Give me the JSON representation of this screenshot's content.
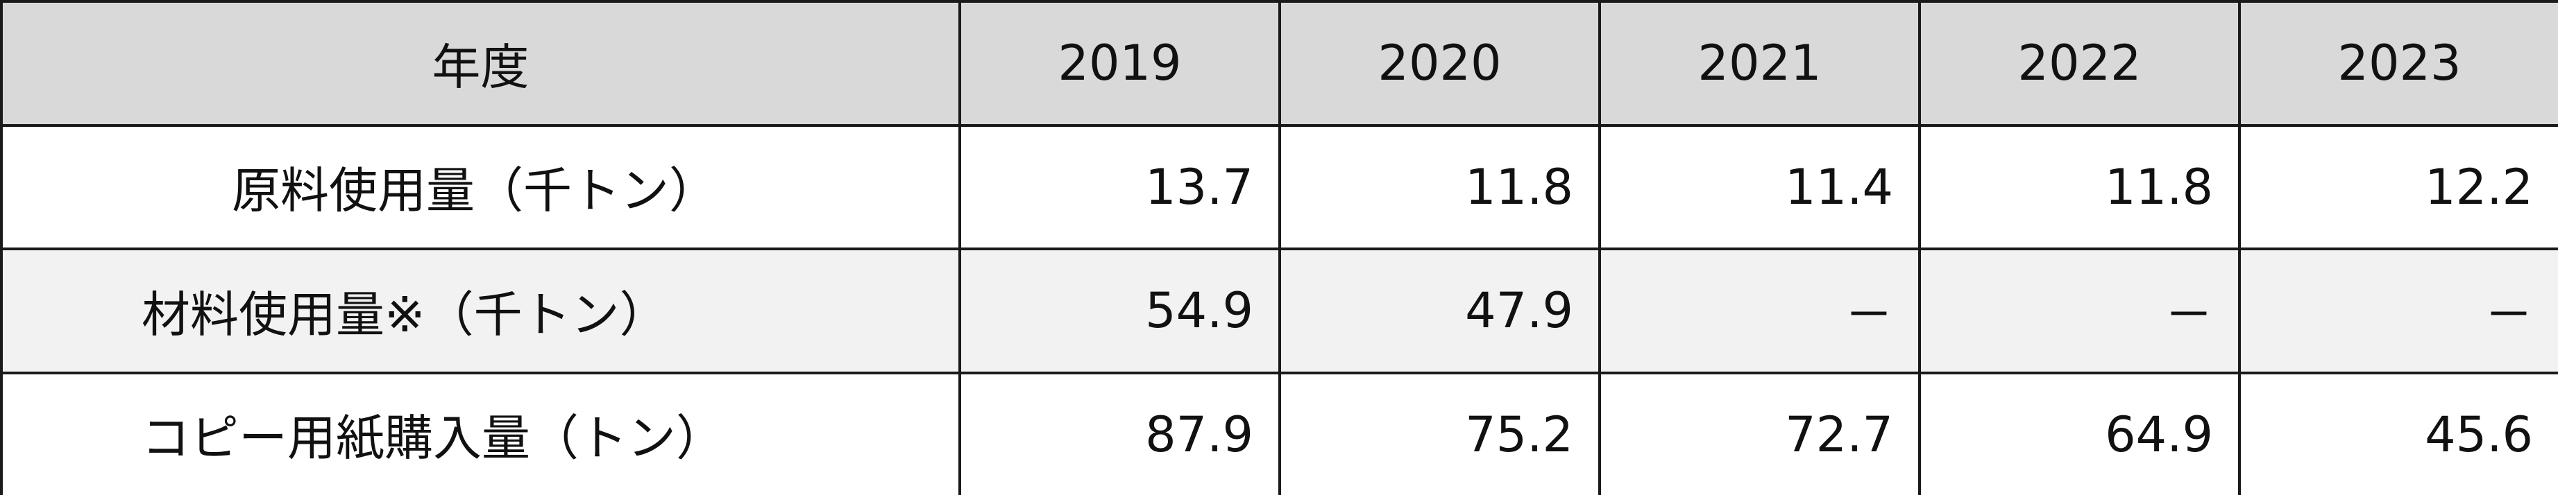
{
  "table": {
    "header": [
      "年度",
      "2019",
      "2020",
      "2021",
      "2022",
      "2023"
    ],
    "rows": [
      [
        "原料使用量（千トン）",
        13.7,
        11.8,
        11.4,
        11.8,
        12.2
      ],
      [
        "材料使用量※（千トン）",
        54.9,
        47.9,
        "－",
        "－",
        "－"
      ],
      [
        "コピー用紙購入量（トン）",
        87.9,
        75.2,
        72.7,
        64.9,
        45.6
      ]
    ]
  }
}
